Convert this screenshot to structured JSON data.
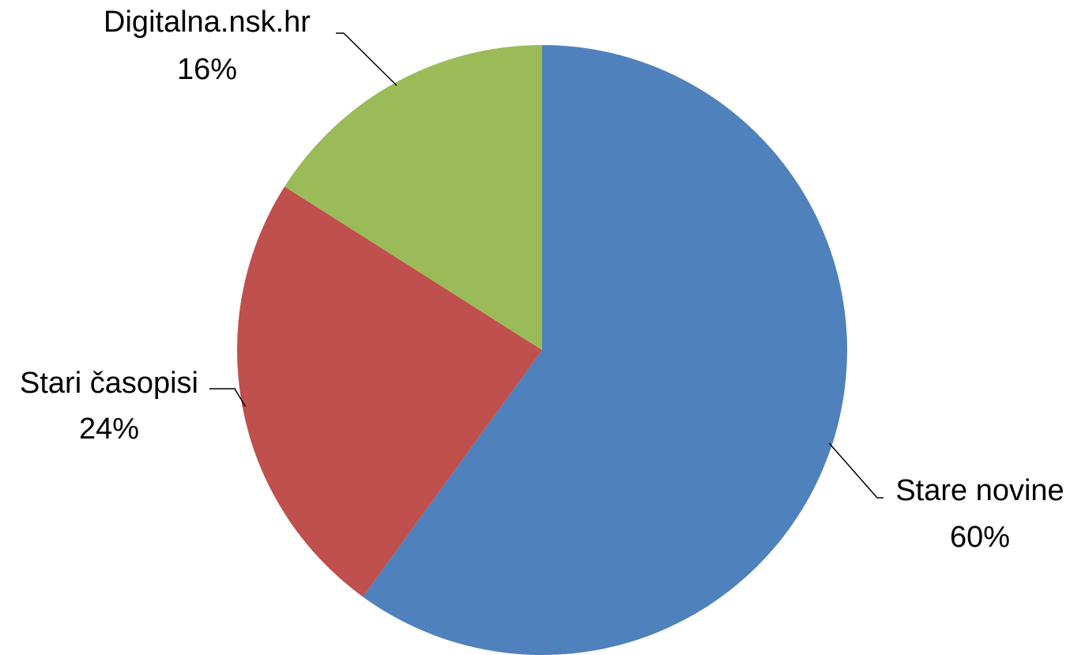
{
  "chart_data": {
    "type": "pie",
    "categories": [
      "Stare novine",
      "Stari časopisi",
      "Digitalna.nsk.hr"
    ],
    "values": [
      60,
      24,
      16
    ],
    "value_labels": [
      "60%",
      "24%",
      "16%"
    ],
    "colors": [
      "#4f81bd",
      "#c0504d",
      "#9bbb59"
    ]
  }
}
